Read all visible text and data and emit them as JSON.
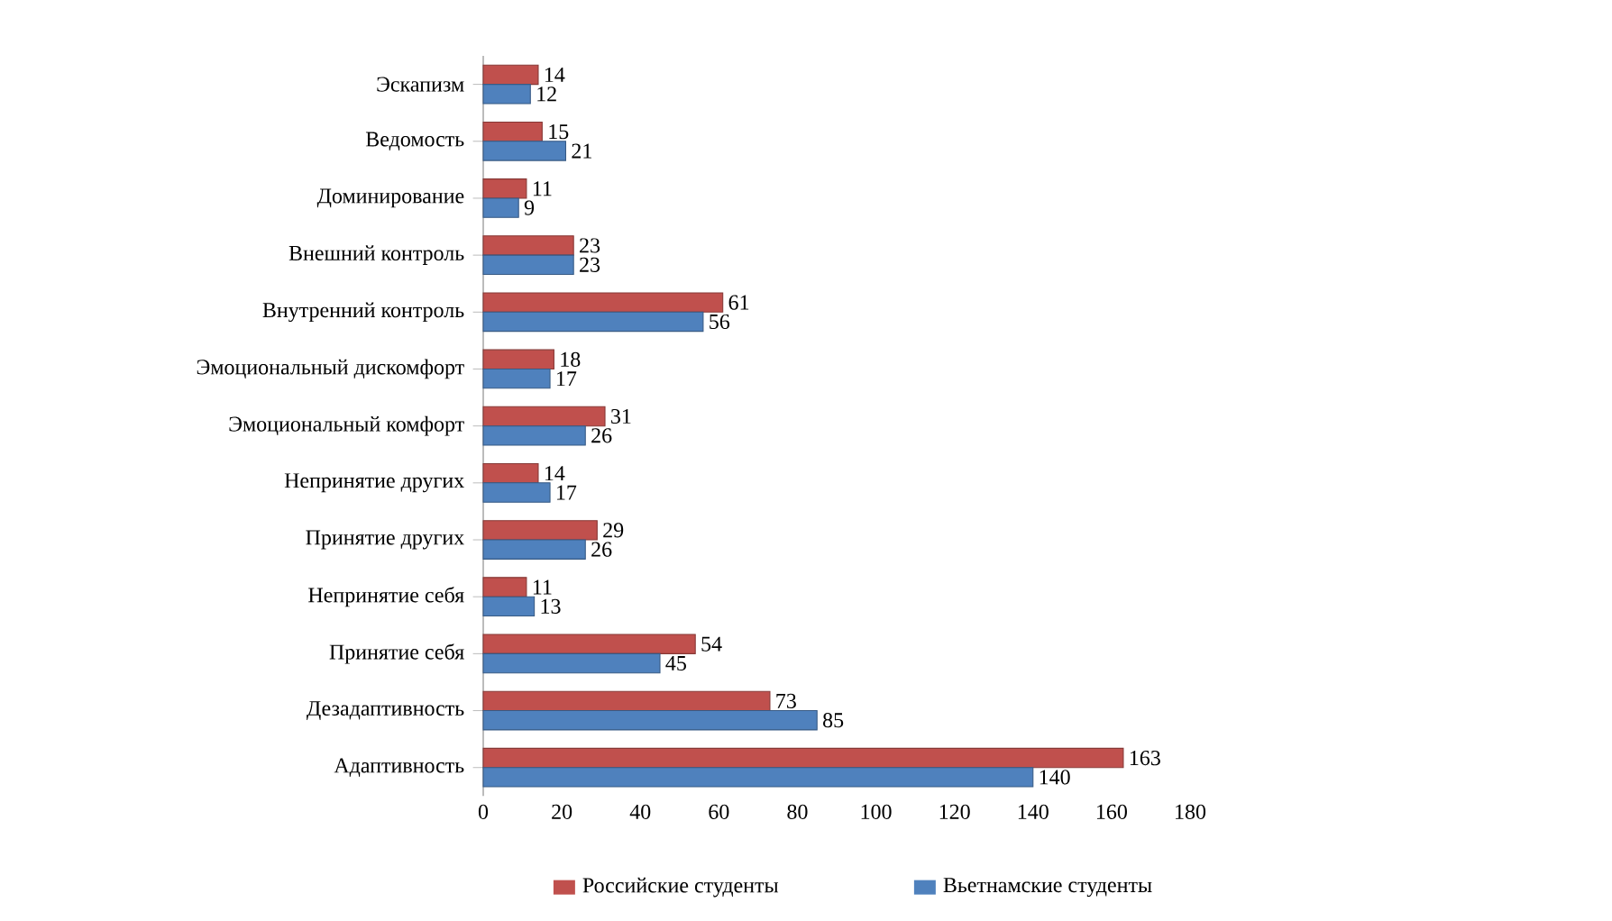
{
  "chart_data": {
    "type": "bar",
    "orientation": "horizontal",
    "legend": "bottom",
    "data_labels": true,
    "categories": [
      "Эскапизм",
      "Ведомость",
      "Доминирование",
      "Внешний контроль",
      "Внутренний контроль",
      "Эмоциональный дискомфорт",
      "Эмоциональный комфорт",
      "Непринятие других",
      "Принятие других",
      "Непринятие себя",
      "Принятие себя",
      "Дезадаптивность",
      "Адаптивность"
    ],
    "series": [
      {
        "name": "Российские студенты",
        "color": "#c0504d",
        "values": [
          14,
          15,
          11,
          23,
          61,
          18,
          31,
          14,
          29,
          11,
          54,
          73,
          163
        ]
      },
      {
        "name": "Вьетнамские студенты",
        "color": "#4f81bd",
        "values": [
          12,
          21,
          9,
          23,
          56,
          17,
          26,
          17,
          26,
          13,
          45,
          85,
          140
        ]
      }
    ],
    "xlim": [
      0,
      180
    ],
    "xticks": [
      0,
      20,
      40,
      60,
      80,
      100,
      120,
      140,
      160,
      180
    ]
  }
}
